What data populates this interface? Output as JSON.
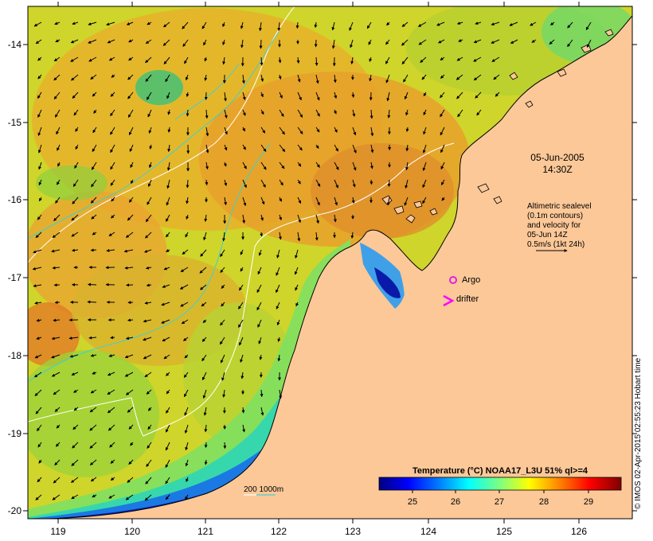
{
  "axes": {
    "x_ticks": [
      "119",
      "120",
      "121",
      "122",
      "123",
      "124",
      "125",
      "126"
    ],
    "y_ticks": [
      "-14",
      "-15",
      "-16",
      "-17",
      "-18",
      "-19",
      "-20"
    ]
  },
  "annotations": {
    "date": "05-Jun-2005",
    "time": "14:30Z",
    "info_lines": [
      "Altimetric sealevel",
      "(0.1m contours)",
      "and velocity for",
      "05-Jun 14Z",
      "0.5m/s (1kt 24h)"
    ],
    "argo_label": "Argo",
    "drifter_label": "drifter",
    "isobath_label": "200  1000m"
  },
  "colorbar": {
    "title": "Temperature (°C) NOAA17_L3U 51% ql>=4",
    "ticks": [
      "25",
      "26",
      "27",
      "28",
      "29"
    ],
    "colors": [
      "#00007f",
      "#0000ff",
      "#007fff",
      "#00ffff",
      "#7fff7f",
      "#ffff00",
      "#ff7f00",
      "#ff0000",
      "#7f0000"
    ]
  },
  "credit": "© IMOS 02-Apr-2015 02:55:23 Hobart time",
  "colors": {
    "land": "#fcc898",
    "isobath_200": "#ffffff",
    "isobath_1000": "#40d0d0",
    "argo": "#e020e0",
    "drifter": "#ff00ff"
  }
}
